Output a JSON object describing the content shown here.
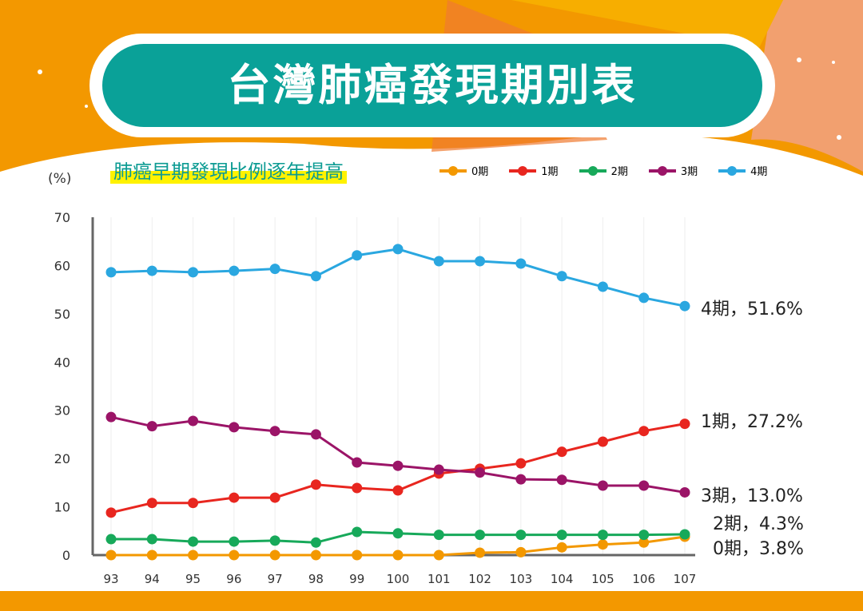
{
  "header": {
    "title": "台灣肺癌發現期別表",
    "subtitle": "肺癌早期發現比例逐年提高",
    "unit": "(%)"
  },
  "chart_data": {
    "type": "line",
    "title": "台灣肺癌發現期別表",
    "xlabel": "",
    "ylabel": "(%)",
    "categories": [
      "93",
      "94",
      "95",
      "96",
      "97",
      "98",
      "99",
      "100",
      "101",
      "102",
      "103",
      "104",
      "105",
      "106",
      "107"
    ],
    "ylim": [
      0,
      70
    ],
    "yticks": [
      "0",
      "10",
      "20",
      "30",
      "40",
      "50",
      "60",
      "70"
    ],
    "legend_position": "top-right",
    "series": [
      {
        "name": "0期",
        "color": "#f39800",
        "end_label": "0期，3.8%",
        "values": [
          0,
          0,
          0,
          0,
          0,
          0,
          0,
          0,
          0,
          0.5,
          0.6,
          1.6,
          2.2,
          2.6,
          3.8
        ]
      },
      {
        "name": "1期",
        "color": "#e8261f",
        "end_label": "1期，27.2%",
        "values": [
          8.8,
          10.8,
          10.8,
          11.9,
          11.9,
          14.6,
          13.9,
          13.4,
          16.9,
          17.9,
          19.0,
          21.4,
          23.5,
          25.7,
          27.2
        ]
      },
      {
        "name": "2期",
        "color": "#17a95a",
        "end_label": "2期，4.3%",
        "values": [
          3.3,
          3.3,
          2.8,
          2.8,
          3.0,
          2.6,
          4.8,
          4.5,
          4.2,
          4.2,
          4.2,
          4.2,
          4.2,
          4.2,
          4.3
        ]
      },
      {
        "name": "3期",
        "color": "#9b1467",
        "end_label": "3期，13.0%",
        "values": [
          28.6,
          26.7,
          27.8,
          26.5,
          25.7,
          25.0,
          19.2,
          18.5,
          17.7,
          17.1,
          15.7,
          15.6,
          14.4,
          14.4,
          13.0
        ]
      },
      {
        "name": "4期",
        "color": "#2aa7e0",
        "end_label": "4期，51.6%",
        "values": [
          58.6,
          58.9,
          58.6,
          58.9,
          59.3,
          57.8,
          62.1,
          63.4,
          60.9,
          60.9,
          60.4,
          57.8,
          55.6,
          53.3,
          51.6
        ]
      }
    ]
  }
}
